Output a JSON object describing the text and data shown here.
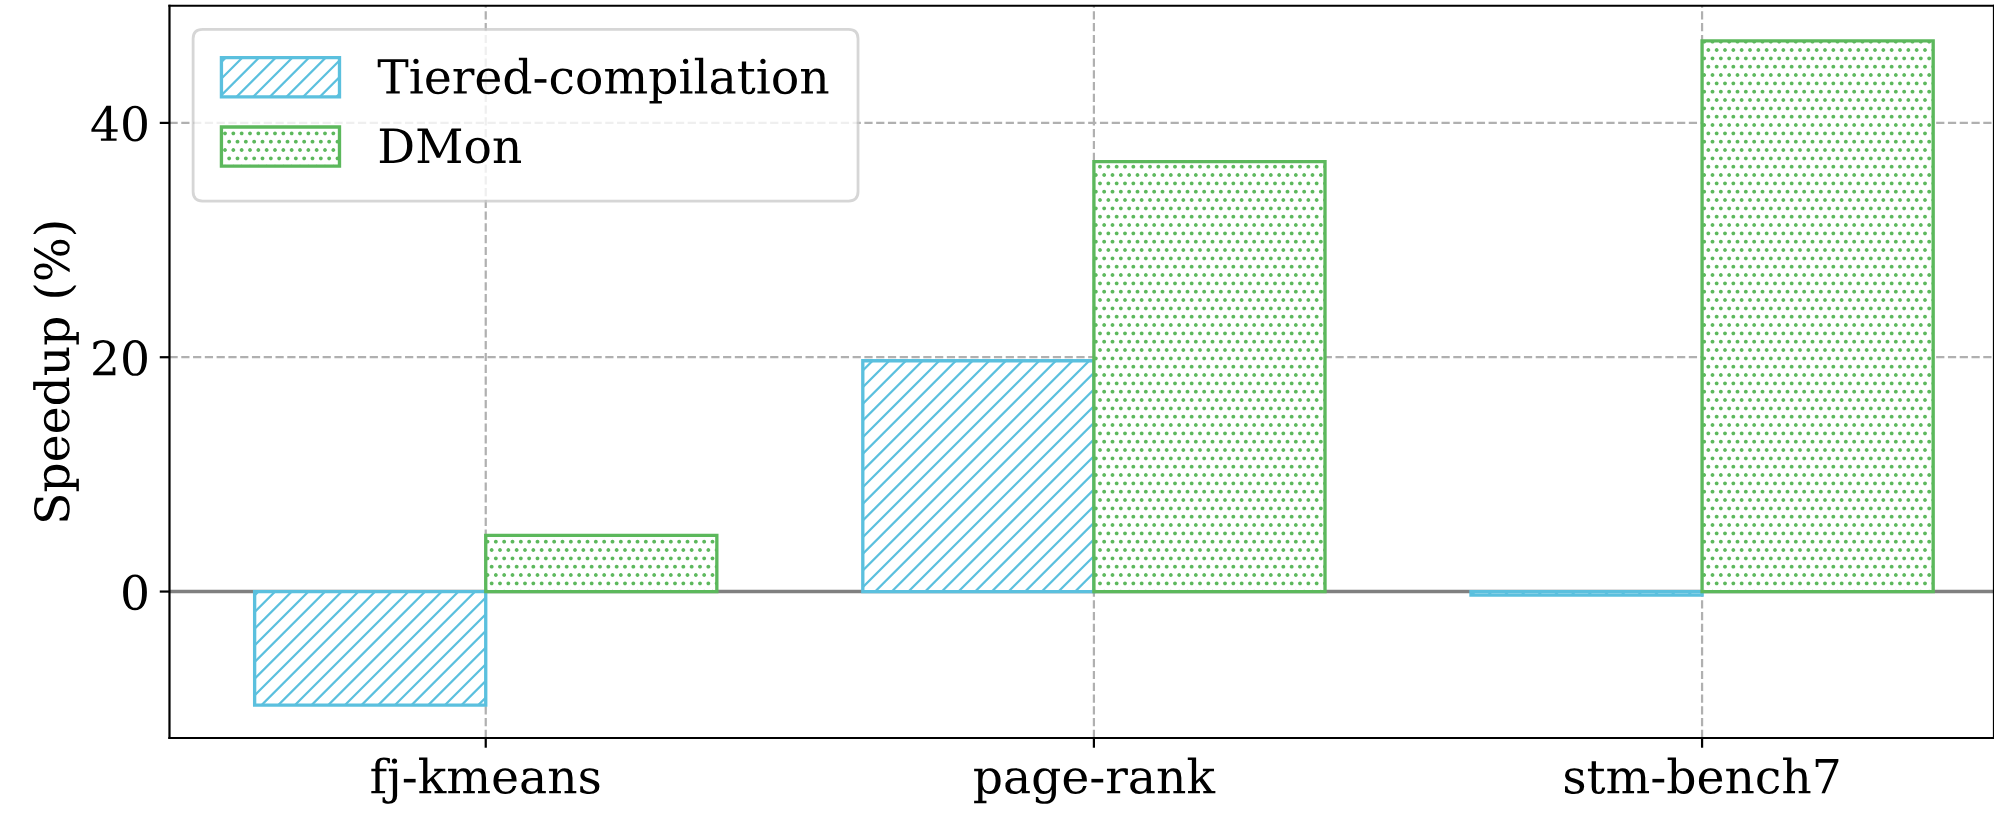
{
  "chart_data": {
    "type": "bar",
    "ylabel": "Speedup (%)",
    "categories": [
      "fj-kmeans",
      "page-rank",
      "stm-bench7"
    ],
    "series": [
      {
        "name": "Tiered-compilation",
        "color": "#5bc0de",
        "values": [
          -9.7,
          19.7,
          -0.3
        ]
      },
      {
        "name": "DMon",
        "color": "#5cb85c",
        "values": [
          4.8,
          36.7,
          47.0
        ]
      }
    ],
    "ylim": [
      -12.5,
      50
    ],
    "yticks": [
      0,
      20,
      40
    ],
    "grid": true,
    "legend": "top left",
    "ref_lines": [
      {
        "axis": "y",
        "value": 0,
        "color": "#808080"
      }
    ]
  }
}
